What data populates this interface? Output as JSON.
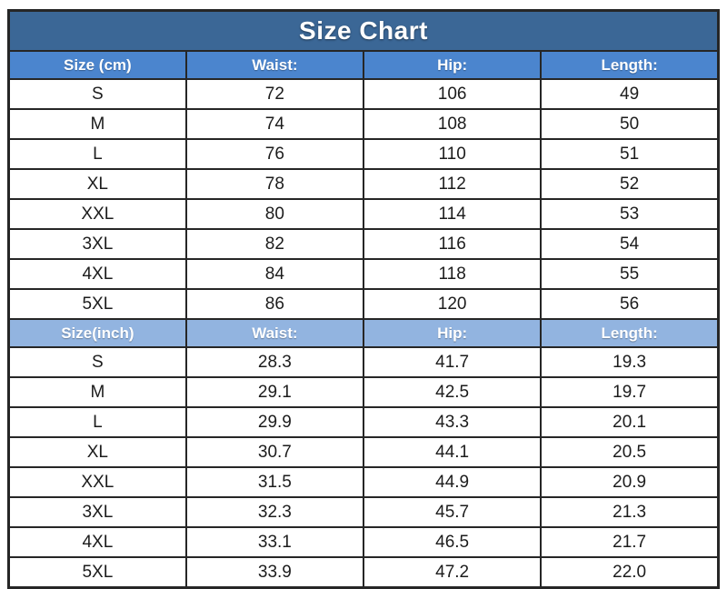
{
  "page": {
    "title": "Size Chart"
  },
  "colors": {
    "title_bg": "#3B6796",
    "cm_header_bg": "#4B85CE",
    "inch_header_bg": "#92B4E0",
    "border": "#262626",
    "header_text": "#FFFFFF",
    "cell_text": "#1C1C1C",
    "page_bg": "#FFFFFF"
  },
  "chart_data": {
    "type": "table",
    "title": "Size Chart",
    "sections": [
      {
        "name": "centimeters",
        "columns": [
          "Size (cm)",
          "Waist:",
          "Hip:",
          "Length:"
        ],
        "rows": [
          [
            "S",
            "72",
            "106",
            "49"
          ],
          [
            "M",
            "74",
            "108",
            "50"
          ],
          [
            "L",
            "76",
            "110",
            "51"
          ],
          [
            "XL",
            "78",
            "112",
            "52"
          ],
          [
            "XXL",
            "80",
            "114",
            "53"
          ],
          [
            "3XL",
            "82",
            "116",
            "54"
          ],
          [
            "4XL",
            "84",
            "118",
            "55"
          ],
          [
            "5XL",
            "86",
            "120",
            "56"
          ]
        ]
      },
      {
        "name": "inches",
        "columns": [
          "Size(inch)",
          "Waist:",
          "Hip:",
          "Length:"
        ],
        "rows": [
          [
            "S",
            "28.3",
            "41.7",
            "19.3"
          ],
          [
            "M",
            "29.1",
            "42.5",
            "19.7"
          ],
          [
            "L",
            "29.9",
            "43.3",
            "20.1"
          ],
          [
            "XL",
            "30.7",
            "44.1",
            "20.5"
          ],
          [
            "XXL",
            "31.5",
            "44.9",
            "20.9"
          ],
          [
            "3XL",
            "32.3",
            "45.7",
            "21.3"
          ],
          [
            "4XL",
            "33.1",
            "46.5",
            "21.7"
          ],
          [
            "5XL",
            "33.9",
            "47.2",
            "22.0"
          ]
        ]
      }
    ]
  }
}
